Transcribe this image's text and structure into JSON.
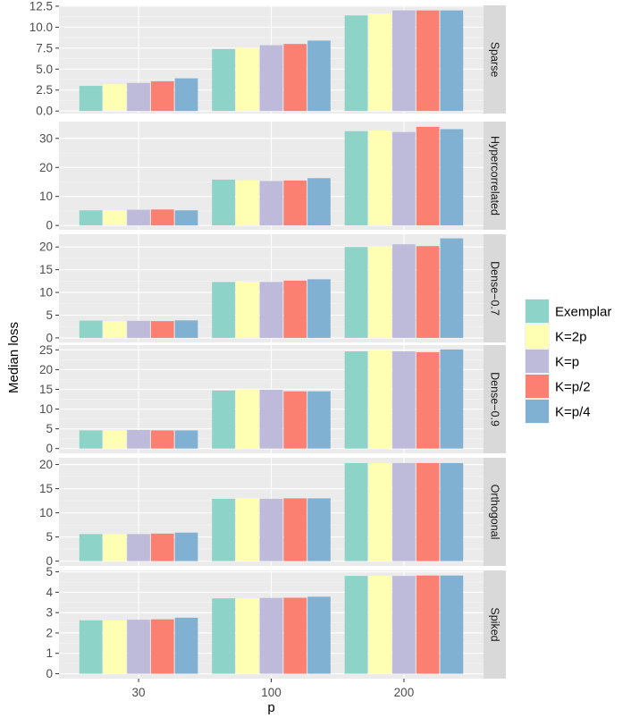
{
  "chart_data": {
    "type": "bar",
    "xlabel": "p",
    "ylabel": "Median loss",
    "categories": [
      "30",
      "100",
      "200"
    ],
    "legend": {
      "placement": "right",
      "entries": [
        {
          "name": "Exemplar",
          "color": "#8DD3C7"
        },
        {
          "name": "K=2p",
          "color": "#FFFFB3"
        },
        {
          "name": "K=p",
          "color": "#BEBADA"
        },
        {
          "name": "K=p/2",
          "color": "#FB8072"
        },
        {
          "name": "K=p/4",
          "color": "#80B1D3"
        }
      ]
    },
    "panels": [
      {
        "label": "Sparse",
        "ylim": [
          -0.3,
          12.6
        ],
        "ticks": [
          0,
          2.5,
          5,
          7.5,
          10,
          12.5
        ],
        "tick_labels": [
          "0.0",
          "2.5",
          "5.0",
          "7.5",
          "10.0",
          "12.5"
        ],
        "series": [
          {
            "name": "Exemplar",
            "values": [
              3.0,
              7.4,
              11.4
            ]
          },
          {
            "name": "K=2p",
            "values": [
              3.2,
              7.6,
              11.6
            ]
          },
          {
            "name": "K=p",
            "values": [
              3.35,
              7.85,
              12.0
            ]
          },
          {
            "name": "K=p/2",
            "values": [
              3.55,
              8.0,
              12.0
            ]
          },
          {
            "name": "K=p/4",
            "values": [
              3.9,
              8.4,
              12.0
            ]
          }
        ]
      },
      {
        "label": "Hypercorrelated",
        "ylim": [
          -1.5,
          35.8
        ],
        "ticks": [
          0,
          10,
          20,
          30
        ],
        "tick_labels": [
          "0",
          "10",
          "20",
          "30"
        ],
        "series": [
          {
            "name": "Exemplar",
            "values": [
              5.2,
              15.8,
              32.5
            ]
          },
          {
            "name": "K=2p",
            "values": [
              5.3,
              15.5,
              32.7
            ]
          },
          {
            "name": "K=p",
            "values": [
              5.4,
              15.3,
              32.2
            ]
          },
          {
            "name": "K=p/2",
            "values": [
              5.5,
              15.5,
              34.0
            ]
          },
          {
            "name": "K=p/4",
            "values": [
              5.2,
              16.3,
              33.2
            ]
          }
        ]
      },
      {
        "label": "Dense−0.7",
        "ylim": [
          -1.0,
          22.8
        ],
        "ticks": [
          0,
          5,
          10,
          15,
          20
        ],
        "tick_labels": [
          "0",
          "5",
          "10",
          "15",
          "20"
        ],
        "series": [
          {
            "name": "Exemplar",
            "values": [
              3.8,
              12.3,
              20.0
            ]
          },
          {
            "name": "K=2p",
            "values": [
              3.7,
              12.4,
              20.1
            ]
          },
          {
            "name": "K=p",
            "values": [
              3.75,
              12.3,
              20.6
            ]
          },
          {
            "name": "K=p/2",
            "values": [
              3.7,
              12.6,
              20.2
            ]
          },
          {
            "name": "K=p/4",
            "values": [
              3.85,
              12.9,
              21.9
            ]
          }
        ]
      },
      {
        "label": "Dense−0.9",
        "ylim": [
          -1.2,
          26.2
        ],
        "ticks": [
          0,
          5,
          10,
          15,
          20,
          25
        ],
        "tick_labels": [
          "0",
          "5",
          "10",
          "15",
          "20",
          "25"
        ],
        "series": [
          {
            "name": "Exemplar",
            "values": [
              4.6,
              14.7,
              24.6
            ]
          },
          {
            "name": "K=2p",
            "values": [
              4.65,
              15.0,
              24.9
            ]
          },
          {
            "name": "K=p",
            "values": [
              4.7,
              14.9,
              24.6
            ]
          },
          {
            "name": "K=p/2",
            "values": [
              4.6,
              14.5,
              24.4
            ]
          },
          {
            "name": "K=p/4",
            "values": [
              4.6,
              14.5,
              25.1
            ]
          }
        ]
      },
      {
        "label": "Orthogonal",
        "ylim": [
          -1.0,
          21.4
        ],
        "ticks": [
          0,
          5,
          10,
          15,
          20
        ],
        "tick_labels": [
          "0",
          "5",
          "10",
          "15",
          "20"
        ],
        "series": [
          {
            "name": "Exemplar",
            "values": [
              5.6,
              12.9,
              20.3
            ]
          },
          {
            "name": "K=2p",
            "values": [
              5.6,
              13.0,
              20.3
            ]
          },
          {
            "name": "K=p",
            "values": [
              5.6,
              12.9,
              20.3
            ]
          },
          {
            "name": "K=p/2",
            "values": [
              5.7,
              13.0,
              20.3
            ]
          },
          {
            "name": "K=p/4",
            "values": [
              5.9,
              13.0,
              20.3
            ]
          }
        ]
      },
      {
        "label": "Spiked",
        "ylim": [
          -0.24,
          5.07
        ],
        "ticks": [
          0,
          1,
          2,
          3,
          4,
          5
        ],
        "tick_labels": [
          "0",
          "1",
          "2",
          "3",
          "4",
          "5"
        ],
        "series": [
          {
            "name": "Exemplar",
            "values": [
              2.62,
              3.7,
              4.8
            ]
          },
          {
            "name": "K=2p",
            "values": [
              2.62,
              3.7,
              4.8
            ]
          },
          {
            "name": "K=p",
            "values": [
              2.65,
              3.72,
              4.8
            ]
          },
          {
            "name": "K=p/2",
            "values": [
              2.67,
              3.73,
              4.82
            ]
          },
          {
            "name": "K=p/4",
            "values": [
              2.75,
              3.78,
              4.82
            ]
          }
        ]
      }
    ]
  }
}
